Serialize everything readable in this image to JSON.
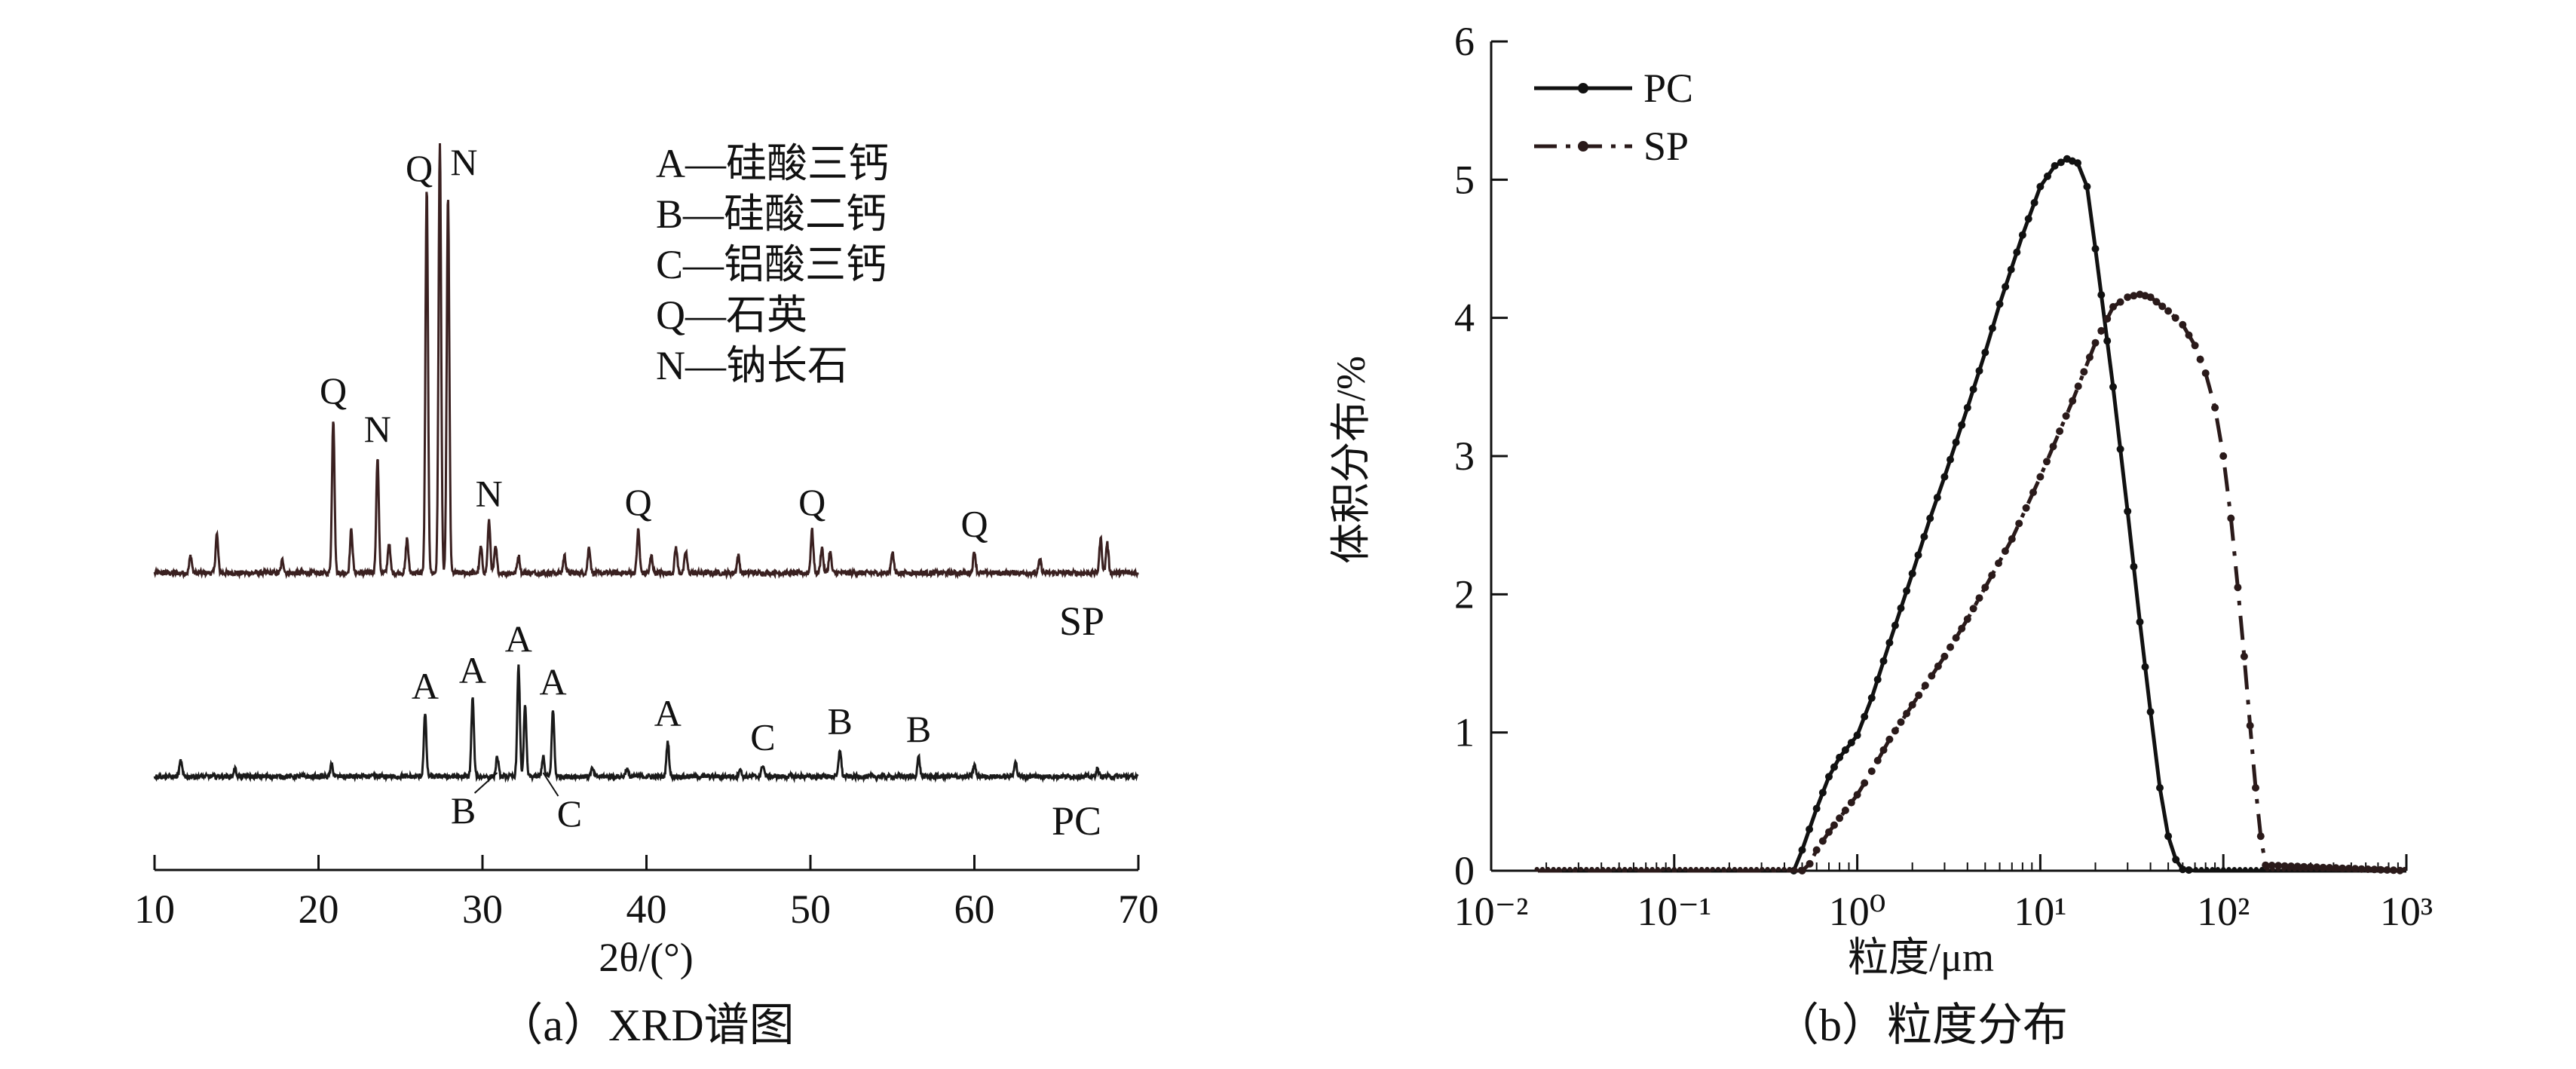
{
  "chart_data": [
    {
      "type": "line",
      "panel": "a",
      "caption": "（a）XRD谱图",
      "xlabel": "2θ/(°)",
      "xlim": [
        10,
        70
      ],
      "xticks": [
        10,
        20,
        30,
        40,
        50,
        60,
        70
      ],
      "legend_lines": [
        "A—硅酸三钙",
        "B—硅酸二钙",
        "C—铝酸三钙",
        "Q—石英",
        "N—钠长石"
      ],
      "series": [
        {
          "name": "SP",
          "color": "#3a2020",
          "peaks": [
            {
              "x": 12.2,
              "h": 0.04
            },
            {
              "x": 13.8,
              "h": 0.09
            },
            {
              "x": 17.8,
              "h": 0.03
            },
            {
              "x": 20.9,
              "h": 0.36,
              "label": "Q"
            },
            {
              "x": 22.0,
              "h": 0.1
            },
            {
              "x": 23.6,
              "h": 0.27,
              "label": "N"
            },
            {
              "x": 24.3,
              "h": 0.07
            },
            {
              "x": 25.4,
              "h": 0.08
            },
            {
              "x": 26.6,
              "h": 0.9,
              "label": "Q"
            },
            {
              "x": 27.4,
              "h": 1.0,
              "label": "N"
            },
            {
              "x": 27.9,
              "h": 0.88
            },
            {
              "x": 29.9,
              "h": 0.06
            },
            {
              "x": 30.4,
              "h": 0.12,
              "label": "N"
            },
            {
              "x": 30.8,
              "h": 0.06
            },
            {
              "x": 32.2,
              "h": 0.04
            },
            {
              "x": 35.0,
              "h": 0.04
            },
            {
              "x": 36.5,
              "h": 0.06
            },
            {
              "x": 39.5,
              "h": 0.1,
              "label": "Q"
            },
            {
              "x": 40.3,
              "h": 0.04
            },
            {
              "x": 41.8,
              "h": 0.06
            },
            {
              "x": 42.4,
              "h": 0.05
            },
            {
              "x": 45.6,
              "h": 0.04
            },
            {
              "x": 50.1,
              "h": 0.1,
              "label": "Q"
            },
            {
              "x": 50.7,
              "h": 0.06
            },
            {
              "x": 51.2,
              "h": 0.05
            },
            {
              "x": 55.0,
              "h": 0.05
            },
            {
              "x": 60.0,
              "h": 0.05,
              "label": "Q"
            },
            {
              "x": 64.0,
              "h": 0.03
            },
            {
              "x": 67.7,
              "h": 0.08
            },
            {
              "x": 68.1,
              "h": 0.07
            }
          ]
        },
        {
          "name": "PC",
          "color": "#1a1a1a",
          "peaks": [
            {
              "x": 11.6,
              "h": 0.04
            },
            {
              "x": 14.9,
              "h": 0.02
            },
            {
              "x": 20.8,
              "h": 0.03
            },
            {
              "x": 26.5,
              "h": 0.16,
              "label": "A"
            },
            {
              "x": 29.4,
              "h": 0.2,
              "label": "A"
            },
            {
              "x": 30.9,
              "h": 0.05,
              "label": "B"
            },
            {
              "x": 32.2,
              "h": 0.28,
              "label": "A"
            },
            {
              "x": 32.6,
              "h": 0.18
            },
            {
              "x": 33.7,
              "h": 0.05,
              "label": "C"
            },
            {
              "x": 34.3,
              "h": 0.17,
              "label": "A"
            },
            {
              "x": 36.7,
              "h": 0.02
            },
            {
              "x": 38.8,
              "h": 0.02
            },
            {
              "x": 41.3,
              "h": 0.09,
              "label": "A"
            },
            {
              "x": 45.7,
              "h": 0.02
            },
            {
              "x": 47.1,
              "h": 0.03,
              "label": "C"
            },
            {
              "x": 51.8,
              "h": 0.07,
              "label": "B"
            },
            {
              "x": 56.6,
              "h": 0.05,
              "label": "B"
            },
            {
              "x": 60.0,
              "h": 0.03
            },
            {
              "x": 62.5,
              "h": 0.04
            },
            {
              "x": 67.5,
              "h": 0.02
            }
          ]
        }
      ]
    },
    {
      "type": "line",
      "panel": "b",
      "caption": "（b）粒度分布",
      "xlabel": "粒度/μm",
      "ylabel": "体积分布/%",
      "xscale": "log",
      "xlim": [
        0.01,
        1000
      ],
      "ylim": [
        0,
        6
      ],
      "xtick_labels": [
        "10⁻²",
        "10⁻¹",
        "10⁰",
        "10¹",
        "10²",
        "10³"
      ],
      "yticks": [
        0,
        1,
        2,
        3,
        4,
        5,
        6
      ],
      "legend": "top-left",
      "series": [
        {
          "name": "PC",
          "style": "solid",
          "color": "#111111",
          "x": [
            0.018,
            0.45,
            0.5,
            0.6,
            0.7,
            0.8,
            1.0,
            1.2,
            1.5,
            2.0,
            2.5,
            3.0,
            4.0,
            5.0,
            6.0,
            8.0,
            10,
            12,
            14,
            16,
            18,
            20,
            25,
            30,
            35,
            40,
            45,
            50,
            55,
            60,
            70,
            1000
          ],
          "y": [
            0,
            0,
            0.15,
            0.45,
            0.68,
            0.82,
            0.98,
            1.25,
            1.65,
            2.15,
            2.55,
            2.85,
            3.35,
            3.75,
            4.1,
            4.6,
            4.95,
            5.1,
            5.15,
            5.12,
            4.95,
            4.5,
            3.5,
            2.6,
            1.8,
            1.15,
            0.6,
            0.25,
            0.08,
            0.01,
            0,
            0
          ]
        },
        {
          "name": "SP",
          "style": "dash-dot",
          "color": "#2a1a1a",
          "x": [
            0.018,
            0.5,
            0.55,
            0.6,
            0.7,
            0.8,
            1.0,
            1.2,
            1.5,
            2.0,
            3.0,
            4.0,
            5.0,
            7.0,
            10,
            15,
            20,
            25,
            30,
            35,
            40,
            50,
            60,
            70,
            80,
            90,
            100,
            110,
            120,
            130,
            140,
            150,
            160,
            170,
            1000
          ],
          "y": [
            0,
            0,
            0.05,
            0.15,
            0.28,
            0.38,
            0.55,
            0.72,
            0.95,
            1.2,
            1.55,
            1.82,
            2.05,
            2.4,
            2.85,
            3.4,
            3.82,
            4.08,
            4.15,
            4.17,
            4.15,
            4.05,
            3.95,
            3.8,
            3.6,
            3.35,
            3.0,
            2.55,
            2.05,
            1.55,
            1.05,
            0.6,
            0.25,
            0.04,
            0
          ]
        }
      ]
    }
  ]
}
